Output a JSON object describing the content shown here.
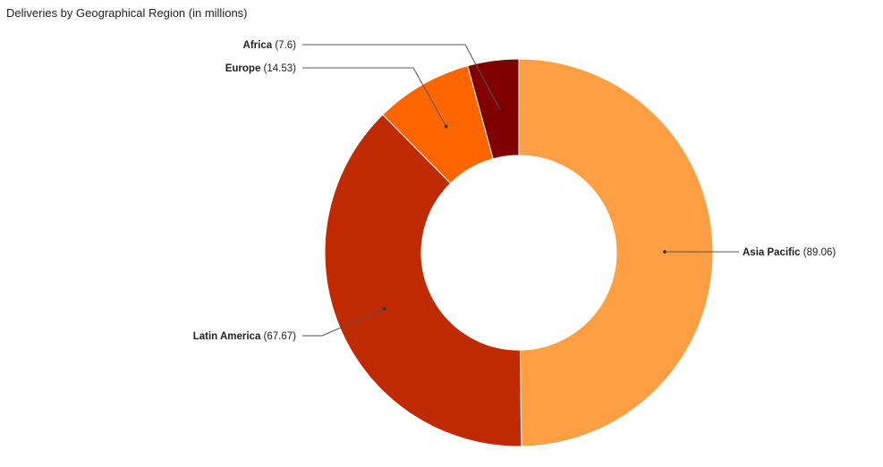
{
  "chart_data": {
    "type": "pie",
    "title": "Deliveries by Geographical Region (in millions)",
    "donut": true,
    "categories": [
      "Asia Pacific",
      "Latin America",
      "Europe",
      "Africa"
    ],
    "values": [
      89.06,
      67.67,
      14.53,
      7.6
    ],
    "slices": [
      {
        "label": "Asia Pacific",
        "value": 89.06,
        "value_text": "(89.06)",
        "color": "#ff9e42"
      },
      {
        "label": "Latin America",
        "value": 67.67,
        "value_text": "(67.67)",
        "color": "#bf2a00"
      },
      {
        "label": "Europe",
        "value": 14.53,
        "value_text": "(14.53)",
        "color": "#ff6600"
      },
      {
        "label": "Africa",
        "value": 7.6,
        "value_text": "(7.6)",
        "color": "#800000"
      }
    ],
    "legend": "none"
  }
}
